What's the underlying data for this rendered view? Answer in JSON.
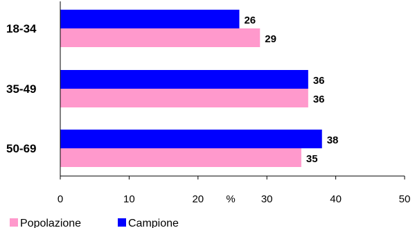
{
  "chart_data": {
    "type": "bar",
    "orientation": "horizontal",
    "categories": [
      "18-34",
      "35-49",
      "50-69"
    ],
    "series": [
      {
        "name": "Campione",
        "values": [
          26,
          36,
          38
        ],
        "color": "#0000ff"
      },
      {
        "name": "Popolazione",
        "values": [
          29,
          36,
          35
        ],
        "color": "#ff99cc"
      }
    ],
    "xlim": [
      0,
      50
    ],
    "x_ticks": [
      "0",
      "10",
      "20",
      "30",
      "40",
      "50"
    ],
    "x_unit_label": "%",
    "grid": false,
    "legend": {
      "position": "bottom-left",
      "entries": [
        "Popolazione",
        "Campione"
      ],
      "entry_labels": [
        "Popolazione",
        "Campione"
      ]
    }
  }
}
